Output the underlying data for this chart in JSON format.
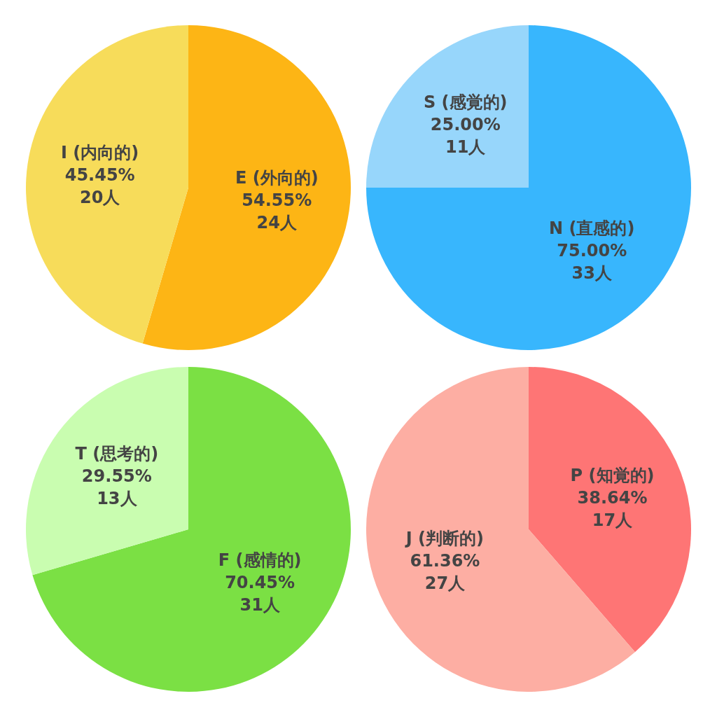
{
  "chart_data": [
    {
      "type": "pie",
      "categories": [
        "E (外向的)",
        "I (内向的)"
      ],
      "values": [
        24,
        20
      ],
      "colors": [
        "#fdb515",
        "#f7dc5a"
      ],
      "value_labels": [
        "54.55%\n24人",
        "45.45%\n20人"
      ]
    },
    {
      "type": "pie",
      "categories": [
        "N (直感的)",
        "S (感覚的)"
      ],
      "values": [
        33,
        11
      ],
      "colors": [
        "#38b6fd",
        "#97d6fb"
      ],
      "value_labels": [
        "75.00%\n33人",
        "25.00%\n11人"
      ]
    },
    {
      "type": "pie",
      "categories": [
        "F (感情的)",
        "T (思考的)"
      ],
      "values": [
        31,
        13
      ],
      "colors": [
        "#7be044",
        "#c9fdb0"
      ],
      "value_labels": [
        "70.45%\n31人",
        "29.55%\n13人"
      ]
    },
    {
      "type": "pie",
      "categories": [
        "P (知覚的)",
        "J (判断的)"
      ],
      "values": [
        17,
        27
      ],
      "colors": [
        "#fe7575",
        "#fdaea3"
      ],
      "value_labels": [
        "38.64%\n17人",
        "61.36%\n27人"
      ]
    }
  ]
}
